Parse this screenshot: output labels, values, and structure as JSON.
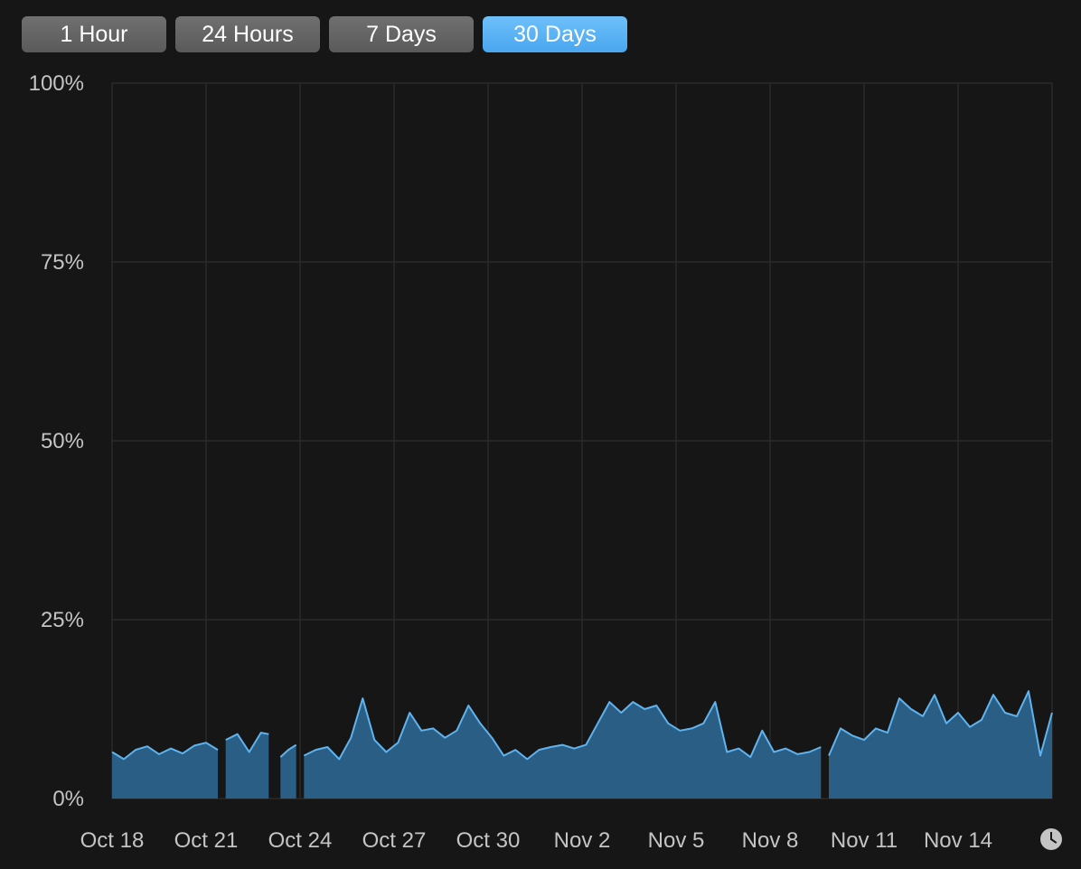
{
  "tabs": [
    {
      "label": "1 Hour",
      "active": false
    },
    {
      "label": "24 Hours",
      "active": false
    },
    {
      "label": "7 Days",
      "active": false
    },
    {
      "label": "30 Days",
      "active": true
    }
  ],
  "icons": {
    "time_icon": "clock-icon"
  },
  "colors": {
    "background": "#161616",
    "grid": "#2a2a2a",
    "area_fill": "#2a5e85",
    "area_line": "#5fb4ef",
    "active_tab": "#58aff4"
  },
  "chart_data": {
    "type": "area",
    "title": "",
    "xlabel": "",
    "ylabel": "",
    "ylim": [
      0,
      100
    ],
    "yticks": [
      "100%",
      "75%",
      "50%",
      "25%",
      "0%"
    ],
    "ytick_values": [
      100,
      75,
      50,
      25,
      0
    ],
    "xticks": [
      "Oct 18",
      "Oct 21",
      "Oct 24",
      "Oct 27",
      "Oct 30",
      "Nov 2",
      "Nov 5",
      "Nov 8",
      "Nov 11",
      "Nov 14"
    ],
    "x_range": [
      "Oct 18",
      "Nov 17"
    ],
    "grid": true,
    "series": [
      {
        "points": [
          [
            "Oct 18 00:00",
            6.5
          ],
          [
            "Oct 18 09:00",
            5.5
          ],
          [
            "Oct 18 18:00",
            6.8
          ],
          [
            "Oct 19 03:00",
            7.3
          ],
          [
            "Oct 19 12:00",
            6.2
          ],
          [
            "Oct 19 21:00",
            7.0
          ],
          [
            "Oct 20 06:00",
            6.3
          ],
          [
            "Oct 20 15:00",
            7.4
          ],
          [
            "Oct 21 00:00",
            7.8
          ],
          [
            "Oct 21 09:00",
            6.8
          ],
          [
            "Oct 21 12:00",
            null
          ],
          [
            "Oct 21 15:00",
            8.2
          ],
          [
            "Oct 22 00:00",
            9.0
          ],
          [
            "Oct 22 09:00",
            6.5
          ],
          [
            "Oct 22 18:00",
            9.2
          ],
          [
            "Oct 23 00:00",
            9.0
          ],
          [
            "Oct 23 03:00",
            null
          ],
          [
            "Oct 23 09:00",
            5.8
          ],
          [
            "Oct 23 15:00",
            6.8
          ],
          [
            "Oct 23 21:00",
            7.5
          ],
          [
            "Oct 24 00:00",
            null
          ],
          [
            "Oct 24 03:00",
            6.0
          ],
          [
            "Oct 24 12:00",
            6.8
          ],
          [
            "Oct 24 21:00",
            7.2
          ],
          [
            "Oct 25 06:00",
            5.5
          ],
          [
            "Oct 25 15:00",
            8.5
          ],
          [
            "Oct 26 00:00",
            14.0
          ],
          [
            "Oct 26 09:00",
            8.2
          ],
          [
            "Oct 26 18:00",
            6.5
          ],
          [
            "Oct 27 03:00",
            7.8
          ],
          [
            "Oct 27 12:00",
            12.0
          ],
          [
            "Oct 27 21:00",
            9.5
          ],
          [
            "Oct 28 06:00",
            9.8
          ],
          [
            "Oct 28 15:00",
            8.5
          ],
          [
            "Oct 29 00:00",
            9.5
          ],
          [
            "Oct 29 09:00",
            13.0
          ],
          [
            "Oct 29 18:00",
            10.5
          ],
          [
            "Oct 30 03:00",
            8.5
          ],
          [
            "Oct 30 12:00",
            6.0
          ],
          [
            "Oct 30 21:00",
            6.8
          ],
          [
            "Oct 31 06:00",
            5.5
          ],
          [
            "Oct 31 15:00",
            6.8
          ],
          [
            "Nov 1 00:00",
            7.2
          ],
          [
            "Nov 1 09:00",
            7.5
          ],
          [
            "Nov 1 18:00",
            7.0
          ],
          [
            "Nov 2 03:00",
            7.5
          ],
          [
            "Nov 2 12:00",
            10.5
          ],
          [
            "Nov 2 21:00",
            13.5
          ],
          [
            "Nov 3 06:00",
            12.0
          ],
          [
            "Nov 3 15:00",
            13.5
          ],
          [
            "Nov 4 00:00",
            12.5
          ],
          [
            "Nov 4 09:00",
            13.0
          ],
          [
            "Nov 4 18:00",
            10.5
          ],
          [
            "Nov 5 03:00",
            9.5
          ],
          [
            "Nov 5 12:00",
            9.8
          ],
          [
            "Nov 5 21:00",
            10.5
          ],
          [
            "Nov 6 06:00",
            13.5
          ],
          [
            "Nov 6 15:00",
            6.5
          ],
          [
            "Nov 7 00:00",
            7.0
          ],
          [
            "Nov 7 09:00",
            5.8
          ],
          [
            "Nov 7 18:00",
            9.5
          ],
          [
            "Nov 8 03:00",
            6.5
          ],
          [
            "Nov 8 12:00",
            7.0
          ],
          [
            "Nov 8 21:00",
            6.2
          ],
          [
            "Nov 9 06:00",
            6.5
          ],
          [
            "Nov 9 15:00",
            7.2
          ],
          [
            "Nov 9 18:00",
            null
          ],
          [
            "Nov 9 21:00",
            6.0
          ],
          [
            "Nov 10 06:00",
            9.8
          ],
          [
            "Nov 10 15:00",
            8.8
          ],
          [
            "Nov 11 00:00",
            8.2
          ],
          [
            "Nov 11 09:00",
            9.8
          ],
          [
            "Nov 11 18:00",
            9.2
          ],
          [
            "Nov 12 03:00",
            14.0
          ],
          [
            "Nov 12 12:00",
            12.5
          ],
          [
            "Nov 12 21:00",
            11.5
          ],
          [
            "Nov 13 06:00",
            14.5
          ],
          [
            "Nov 13 15:00",
            10.5
          ],
          [
            "Nov 14 00:00",
            12.0
          ],
          [
            "Nov 14 09:00",
            10.0
          ],
          [
            "Nov 14 18:00",
            11.0
          ],
          [
            "Nov 15 03:00",
            14.5
          ],
          [
            "Nov 15 12:00",
            12.0
          ],
          [
            "Nov 15 21:00",
            11.5
          ],
          [
            "Nov 16 06:00",
            15.0
          ],
          [
            "Nov 16 15:00",
            6.0
          ],
          [
            "Nov 17 00:00",
            12.0
          ]
        ]
      }
    ]
  }
}
